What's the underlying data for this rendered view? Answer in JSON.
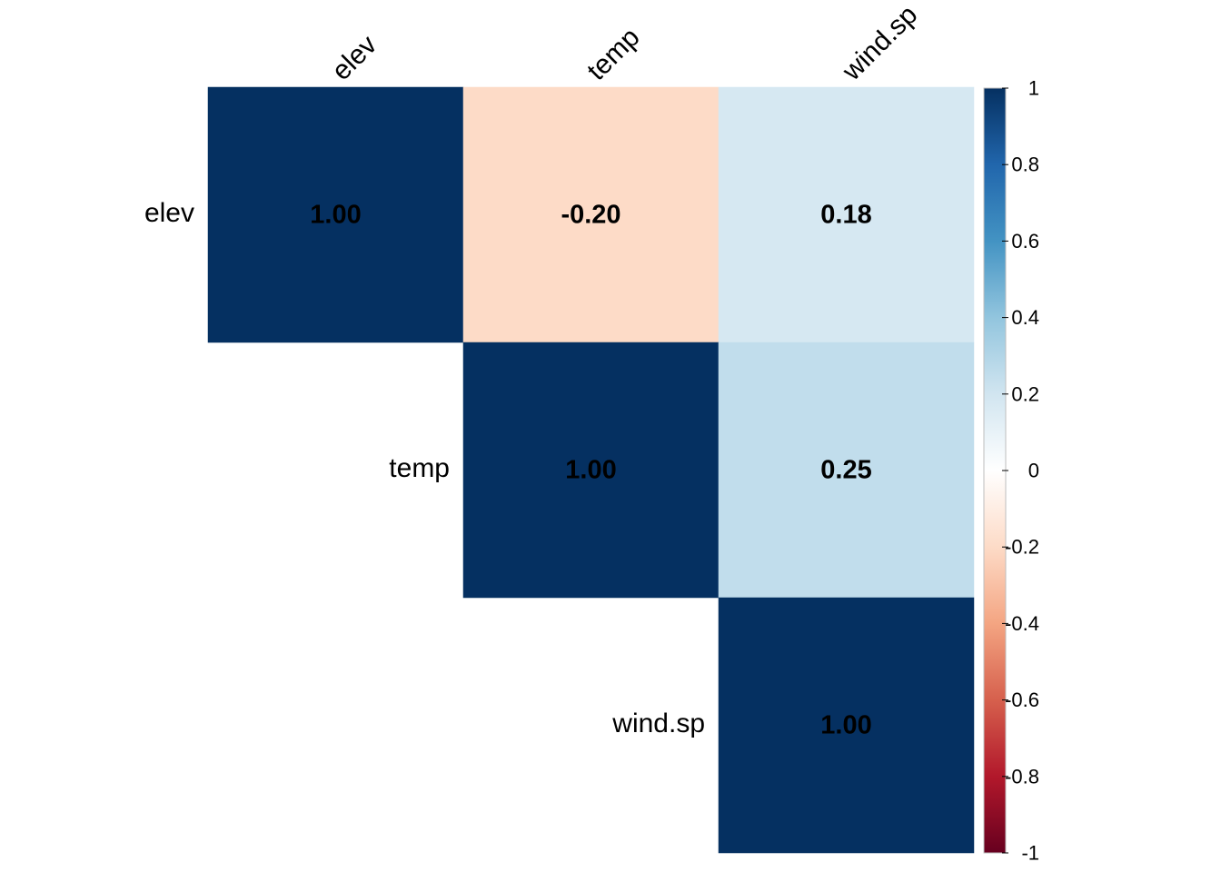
{
  "chart_data": {
    "type": "heatmap",
    "variables": [
      "elev",
      "temp",
      "wind.sp"
    ],
    "matrix_shape": "upper-triangle",
    "cells": [
      {
        "row": "elev",
        "col": "elev",
        "value": 1.0,
        "label": "1.00"
      },
      {
        "row": "elev",
        "col": "temp",
        "value": -0.2,
        "label": "-0.20"
      },
      {
        "row": "elev",
        "col": "wind.sp",
        "value": 0.18,
        "label": "0.18"
      },
      {
        "row": "temp",
        "col": "temp",
        "value": 1.0,
        "label": "1.00"
      },
      {
        "row": "temp",
        "col": "wind.sp",
        "value": 0.25,
        "label": "0.25"
      },
      {
        "row": "wind.sp",
        "col": "wind.sp",
        "value": 1.0,
        "label": "1.00"
      }
    ],
    "color_scale": {
      "range": [
        -1,
        1
      ],
      "stops": [
        {
          "value": -1.0,
          "color": "#67001f"
        },
        {
          "value": -0.8,
          "color": "#b2182b"
        },
        {
          "value": -0.6,
          "color": "#d6604d"
        },
        {
          "value": -0.4,
          "color": "#f4a582"
        },
        {
          "value": -0.2,
          "color": "#fddbc7"
        },
        {
          "value": 0.0,
          "color": "#ffffff"
        },
        {
          "value": 0.2,
          "color": "#d1e5f0"
        },
        {
          "value": 0.4,
          "color": "#92c5de"
        },
        {
          "value": 0.6,
          "color": "#4393c3"
        },
        {
          "value": 0.8,
          "color": "#2166ac"
        },
        {
          "value": 1.0,
          "color": "#053061"
        }
      ],
      "ticks": [
        "1",
        "0.8",
        "0.6",
        "0.4",
        "0.2",
        "0",
        "-0.2",
        "-0.4",
        "-0.6",
        "-0.8",
        "-1"
      ]
    },
    "title": "",
    "xlabel": "",
    "ylabel": ""
  }
}
